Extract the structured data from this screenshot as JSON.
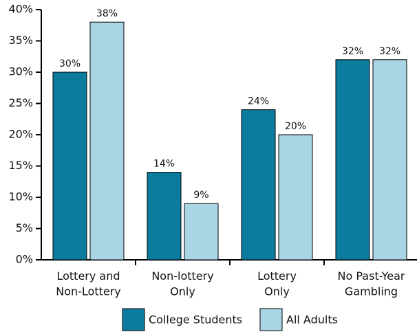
{
  "chart_data": {
    "type": "bar",
    "categories": [
      "Lottery and\nNon-Lottery",
      "Non-lottery\nOnly",
      "Lottery\nOnly",
      "No Past-Year\nGambling"
    ],
    "series": [
      {
        "name": "College Students",
        "color": "#0b7b9e",
        "values": [
          30,
          14,
          24,
          32
        ],
        "value_labels": [
          "30%",
          "14%",
          "24%",
          "32%"
        ]
      },
      {
        "name": "All Adults",
        "color": "#a9d5e5",
        "values": [
          38,
          9,
          20,
          32
        ],
        "value_labels": [
          "38%",
          "9%",
          "20%",
          "32%"
        ]
      }
    ],
    "ylim": [
      0,
      40
    ],
    "yticks": [
      {
        "value": 0,
        "label": "0%"
      },
      {
        "value": 5,
        "label": "5%"
      },
      {
        "value": 10,
        "label": "10%"
      },
      {
        "value": 15,
        "label": "15%"
      },
      {
        "value": 20,
        "label": "20%"
      },
      {
        "value": 25,
        "label": "25%"
      },
      {
        "value": 30,
        "label": "30%"
      },
      {
        "value": 35,
        "label": "35%"
      },
      {
        "value": 40,
        "label": "40%"
      }
    ],
    "grid": false
  }
}
